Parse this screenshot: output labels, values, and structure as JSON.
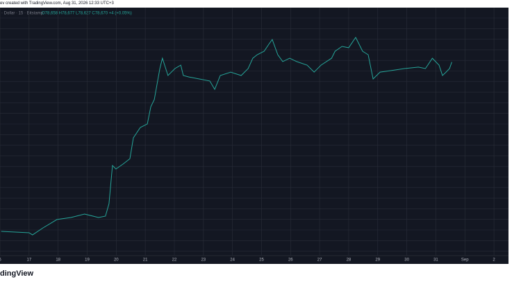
{
  "header": {
    "caption": "ev created with TradingView.com, Aug 31, 2026 12:33 UTC+3"
  },
  "legend": {
    "symbol": "· Dollar · 15 · Bitstamp",
    "ohlc": "O78,658 H78,677 L78,627 C78,670 +4 (+0.05%)"
  },
  "chart_data": {
    "type": "line",
    "x": [
      16.04,
      17,
      17.12,
      17.48,
      17.96,
      18.44,
      18.91,
      19.39,
      19.63,
      19.75,
      19.87,
      19.99,
      20.23,
      20.47,
      20.59,
      20.83,
      21.07,
      21.19,
      21.31,
      21.5,
      21.59,
      21.78,
      22.02,
      22.22,
      22.31,
      22.5,
      22.86,
      23.22,
      23.39,
      23.58,
      23.94,
      24.3,
      24.54,
      24.7,
      24.85,
      25.09,
      25.25,
      25.37,
      25.56,
      25.73,
      25.97,
      26.21,
      26.57,
      26.81,
      27.05,
      27.41,
      27.53,
      27.77,
      28.0,
      28.24,
      28.48,
      28.67,
      28.84,
      29.08,
      29.44,
      29.92,
      30.4,
      30.64,
      30.88,
      31.11,
      31.23,
      31.35,
      31.47,
      31.55
    ],
    "series": [
      {
        "color": "#26a69a",
        "values": [
          63650,
          63530,
          63340,
          63960,
          64700,
          64880,
          65190,
          64880,
          65000,
          66110,
          69490,
          69180,
          69610,
          70100,
          71950,
          72870,
          73180,
          74710,
          75330,
          78090,
          79010,
          77480,
          78090,
          78400,
          77480,
          77350,
          77170,
          76990,
          76250,
          77480,
          77780,
          77480,
          78090,
          79010,
          79320,
          79630,
          80240,
          80670,
          79320,
          78710,
          79010,
          78710,
          78400,
          77780,
          78400,
          79010,
          79630,
          80060,
          79940,
          80860,
          79630,
          79320,
          77170,
          77780,
          77910,
          78090,
          78220,
          78090,
          79010,
          78400,
          77480,
          77780,
          78090,
          78670
        ]
      }
    ],
    "xlim": [
      16,
      33.5
    ],
    "ylim": [
      61500,
      83500
    ],
    "xticks": [
      {
        "value": 16,
        "label": "6"
      },
      17,
      18,
      19,
      20,
      21,
      22,
      23,
      24,
      25,
      26,
      27,
      28,
      29,
      30,
      31,
      {
        "value": 32,
        "label": "Sep"
      },
      {
        "value": 33,
        "label": "2"
      }
    ],
    "grid": true
  }
}
